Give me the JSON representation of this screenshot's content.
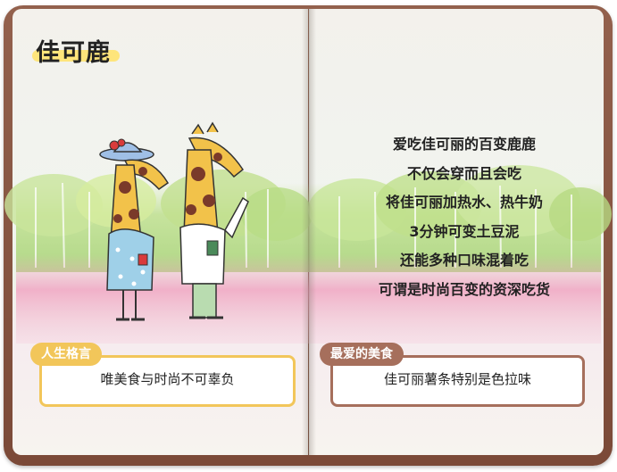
{
  "title": "佳可鹿",
  "poem_lines": [
    "爱吃佳可丽的百变鹿鹿",
    "不仅会穿而且会吃",
    "将佳可丽加热水、热牛奶",
    "3分钟可变土豆泥",
    "还能多种口味混着吃",
    "可谓是时尚百变的资深吃货"
  ],
  "motto": {
    "tag": "人生格言",
    "text": "唯美食与时尚不可辜负"
  },
  "favorite_food": {
    "tag": "最爱的美食",
    "text": "佳可丽薯条特别是色拉味"
  },
  "colors": {
    "cover": "#8a5a46",
    "motto_accent": "#f2c65a",
    "food_accent": "#a66f5c",
    "title_highlight": "#ffe36e"
  }
}
